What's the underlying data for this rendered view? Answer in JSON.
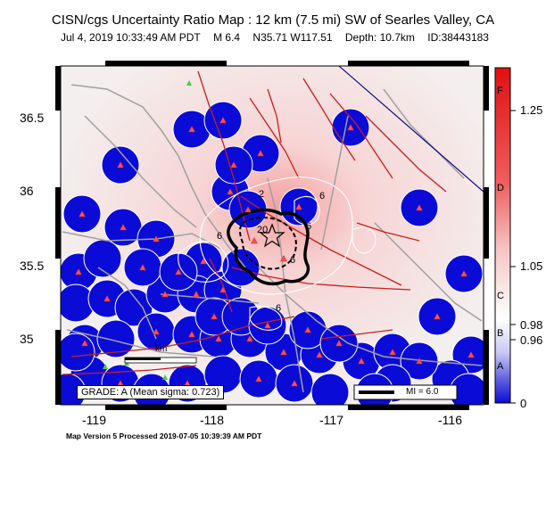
{
  "title": "CISN/cgs Uncertainty Ratio Map : 12 km (7.5 mi) SW of Searles Valley, CA",
  "subtitle": {
    "datetime": "Jul  4, 2019 10:33:49 AM PDT",
    "magnitude": "M 6.4",
    "location": "N35.71 W117.51",
    "depth": "Depth: 10.7km",
    "id": "ID:38443183"
  },
  "axes": {
    "lat_labels": [
      "36.5",
      "36",
      "35.5",
      "35"
    ],
    "lon_labels": [
      "-119",
      "-118",
      "-117",
      "-116"
    ]
  },
  "grade": "GRADE: A (Mean sigma: 0.723)",
  "scale_bar": {
    "label": "km"
  },
  "legend_mi": "MI = 6.0",
  "footer": "Map Version 5 Processed 2019-07-05 10:39:39 AM PDT",
  "colorbar": {
    "values": [
      "1.25",
      "1.05",
      "0.98",
      "0.96",
      "0"
    ],
    "letters": [
      "F",
      "D",
      "C",
      "B",
      "A"
    ]
  },
  "contour_labels": [
    "6",
    "6",
    "6",
    "6",
    "20",
    "2",
    "6"
  ],
  "colors": {
    "ocean_blue": "#0b0bd8",
    "station_red": "#ff5050",
    "fault_red": "#c81e1e",
    "highway_gray": "#a0a0a0",
    "center_red": "#f08080"
  }
}
